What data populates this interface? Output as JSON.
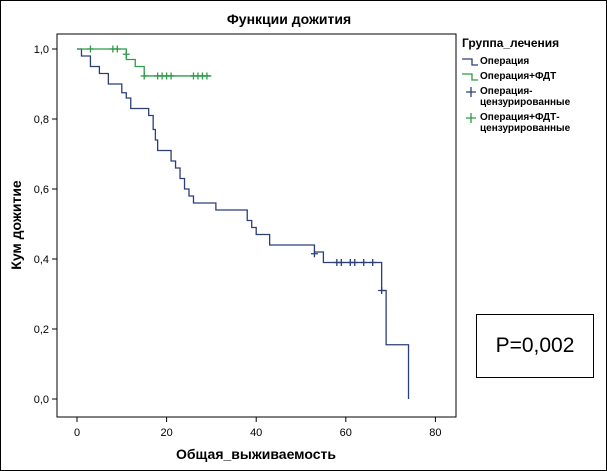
{
  "chart_data": {
    "type": "line",
    "title": "Функции дожития",
    "xlabel": "Общая_выживаемость",
    "ylabel": "Кум дожитие",
    "xlim": [
      0,
      80
    ],
    "ylim": [
      0,
      1
    ],
    "x_ticks": [
      0,
      20,
      40,
      60,
      80
    ],
    "y_ticks": [
      0.0,
      0.2,
      0.4,
      0.6,
      0.8,
      1.0
    ],
    "x_tick_labels": [
      "0",
      "20",
      "40",
      "60",
      "80"
    ],
    "y_tick_labels": [
      "0,0",
      "0,2",
      "0,4",
      "0,6",
      "0,8",
      "1,0"
    ],
    "grid": false,
    "legend_position": "right",
    "legend": {
      "title": "Группа_лечения",
      "entries": [
        {
          "label_lines": [
            "Операция"
          ],
          "color": "#2a3f7a",
          "marker": "line"
        },
        {
          "label_lines": [
            "Операция+ФДТ"
          ],
          "color": "#2e9a4a",
          "marker": "line"
        },
        {
          "label_lines": [
            "Операция-",
            "цензурированные"
          ],
          "color": "#2a3f7a",
          "marker": "plus"
        },
        {
          "label_lines": [
            "Операция+ФДТ-",
            "цензурированные"
          ],
          "color": "#2e9a4a",
          "marker": "plus"
        }
      ]
    },
    "series": [
      {
        "name": "Операция",
        "color": "#2a3f7a",
        "steps": [
          [
            0,
            1.0
          ],
          [
            1,
            0.98
          ],
          [
            3,
            0.95
          ],
          [
            5,
            0.93
          ],
          [
            7,
            0.9
          ],
          [
            10,
            0.875
          ],
          [
            11,
            0.86
          ],
          [
            12,
            0.83
          ],
          [
            16,
            0.81
          ],
          [
            17,
            0.77
          ],
          [
            17.5,
            0.74
          ],
          [
            18,
            0.71
          ],
          [
            21,
            0.68
          ],
          [
            22,
            0.66
          ],
          [
            23,
            0.63
          ],
          [
            24,
            0.6
          ],
          [
            25,
            0.58
          ],
          [
            26,
            0.56
          ],
          [
            31,
            0.54
          ],
          [
            38,
            0.51
          ],
          [
            39,
            0.49
          ],
          [
            40,
            0.47
          ],
          [
            43,
            0.44
          ],
          [
            53,
            0.42
          ],
          [
            55,
            0.39
          ],
          [
            68,
            0.31
          ],
          [
            69,
            0.155
          ],
          [
            74,
            0.0
          ]
        ],
        "end_x": 74,
        "censored": [
          [
            53,
            0.415
          ],
          [
            58,
            0.39
          ],
          [
            59,
            0.39
          ],
          [
            61,
            0.39
          ],
          [
            62,
            0.39
          ],
          [
            64,
            0.39
          ],
          [
            66,
            0.39
          ],
          [
            68,
            0.31
          ]
        ]
      },
      {
        "name": "Операция+ФДТ",
        "color": "#2e9a4a",
        "steps": [
          [
            0,
            1.0
          ],
          [
            11,
            0.97
          ],
          [
            13,
            0.95
          ],
          [
            15,
            0.923
          ]
        ],
        "end_x": 30,
        "censored": [
          [
            3,
            1.0
          ],
          [
            8,
            1.0
          ],
          [
            9,
            1.0
          ],
          [
            11,
            0.985
          ],
          [
            15,
            0.923
          ],
          [
            18,
            0.923
          ],
          [
            19,
            0.923
          ],
          [
            20,
            0.923
          ],
          [
            21,
            0.923
          ],
          [
            26,
            0.923
          ],
          [
            27,
            0.923
          ],
          [
            28,
            0.923
          ],
          [
            29,
            0.923
          ]
        ]
      }
    ]
  },
  "p_value_text": "P=0,002"
}
